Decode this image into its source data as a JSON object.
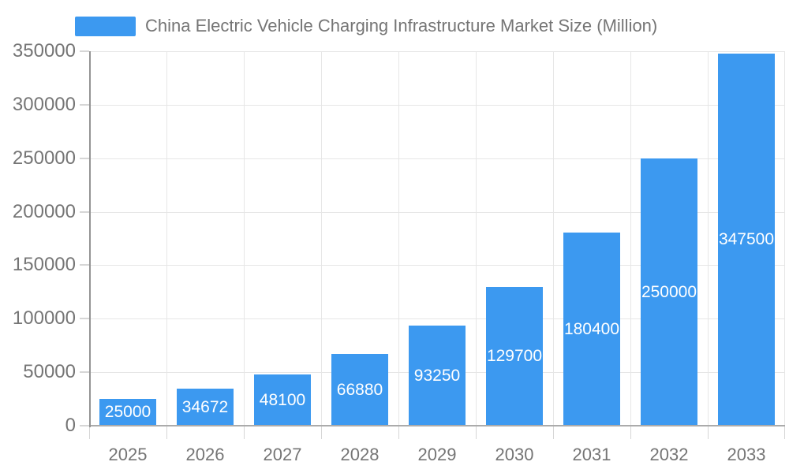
{
  "chart_data": {
    "type": "bar",
    "title": "China Electric Vehicle Charging Infrastructure Market Size (Million)",
    "categories": [
      "2025",
      "2026",
      "2027",
      "2028",
      "2029",
      "2030",
      "2031",
      "2032",
      "2033"
    ],
    "values": [
      25000,
      34672,
      48100,
      66880,
      93250,
      129700,
      180400,
      250000,
      347500
    ],
    "value_labels": [
      "25000",
      "34672",
      "48100",
      "66880",
      "93250",
      "129700",
      "180400",
      "250000",
      "347500"
    ],
    "xlabel": "",
    "ylabel": "",
    "ylim": [
      0,
      350000
    ],
    "y_ticks": [
      0,
      50000,
      100000,
      150000,
      200000,
      250000,
      300000,
      350000
    ],
    "grid": true,
    "legend_position": "top-left"
  },
  "legend": {
    "label": "China Electric Vehicle Charging Infrastructure Market Size (Million)"
  },
  "colors": {
    "bar": "#3c99f0",
    "value_label": "#ffffff",
    "axis_text": "#757575",
    "grid": "#e6e6e6",
    "tick": "#d6d6d6",
    "axis_line_x": "#ababab",
    "axis_line_y": "#949494",
    "background": "#ffffff"
  }
}
